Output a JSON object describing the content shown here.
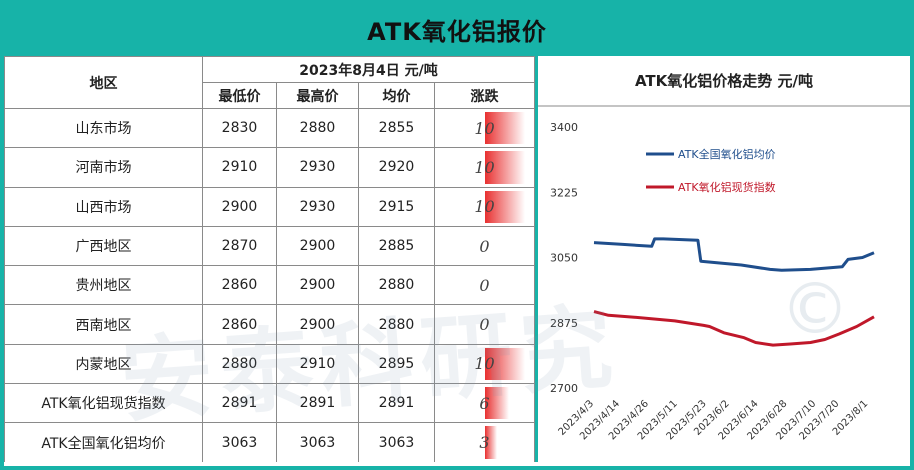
{
  "title": "ATK氧化铝报价",
  "table": {
    "region_header": "地区",
    "date_header": "2023年8月4日  元/吨",
    "col_headers": [
      "最低价",
      "最高价",
      "均价",
      "涨跌"
    ],
    "rows": [
      {
        "region": "山东市场",
        "low": "2830",
        "high": "2880",
        "avg": "2855",
        "change": "10",
        "change_value": 10
      },
      {
        "region": "河南市场",
        "low": "2910",
        "high": "2930",
        "avg": "2920",
        "change": "10",
        "change_value": 10
      },
      {
        "region": "山西市场",
        "low": "2900",
        "high": "2930",
        "avg": "2915",
        "change": "10",
        "change_value": 10
      },
      {
        "region": "广西地区",
        "low": "2870",
        "high": "2900",
        "avg": "2885",
        "change": "0",
        "change_value": 0
      },
      {
        "region": "贵州地区",
        "low": "2860",
        "high": "2900",
        "avg": "2880",
        "change": "0",
        "change_value": 0
      },
      {
        "region": "西南地区",
        "low": "2860",
        "high": "2900",
        "avg": "2880",
        "change": "0",
        "change_value": 0
      },
      {
        "region": "内蒙地区",
        "low": "2880",
        "high": "2910",
        "avg": "2895",
        "change": "10",
        "change_value": 10
      },
      {
        "region": "ATK氧化铝现货指数",
        "low": "2891",
        "high": "2891",
        "avg": "2891",
        "change": "6",
        "change_value": 6
      },
      {
        "region": "ATK全国氧化铝均价",
        "low": "3063",
        "high": "3063",
        "avg": "3063",
        "change": "3",
        "change_value": 3
      }
    ]
  },
  "watermark": "安泰科研究",
  "watermark_symbol": "©",
  "chart_data": {
    "type": "line",
    "title": "ATK氧化铝价格走势  元/吨",
    "ylim": [
      2700,
      3400
    ],
    "yticks": [
      2700,
      2875,
      3050,
      3225,
      3400
    ],
    "x_tick_labels": [
      "2023/4/3",
      "2023/4/14",
      "2023/4/26",
      "2023/5/11",
      "2023/5/23",
      "2023/6/2",
      "2023/6/14",
      "2023/6/28",
      "2023/7/10",
      "2023/7/20",
      "2023/8/1"
    ],
    "x_tick_index": [
      0,
      9,
      19,
      29,
      39,
      47,
      57,
      67,
      77,
      85,
      95
    ],
    "n_points": 98,
    "legend_position": "top-left",
    "grid": false,
    "colors": {
      "national": "#1f4e8c",
      "index": "#c0182a"
    },
    "series": [
      {
        "name": "ATK全国氧化铝均价",
        "key": "national",
        "points": [
          [
            0,
            3090
          ],
          [
            10,
            3085
          ],
          [
            20,
            3080
          ],
          [
            21,
            3100
          ],
          [
            24,
            3100
          ],
          [
            36,
            3096
          ],
          [
            37,
            3040
          ],
          [
            51,
            3030
          ],
          [
            61,
            3018
          ],
          [
            65,
            3016
          ],
          [
            75,
            3018
          ],
          [
            86,
            3025
          ],
          [
            88,
            3045
          ],
          [
            93,
            3050
          ],
          [
            97,
            3063
          ]
        ]
      },
      {
        "name": "ATK氧化铝现货指数",
        "key": "index",
        "points": [
          [
            0,
            2905
          ],
          [
            5,
            2895
          ],
          [
            14,
            2890
          ],
          [
            28,
            2880
          ],
          [
            38,
            2868
          ],
          [
            40,
            2865
          ],
          [
            45,
            2848
          ],
          [
            52,
            2835
          ],
          [
            56,
            2822
          ],
          [
            62,
            2815
          ],
          [
            68,
            2818
          ],
          [
            75,
            2822
          ],
          [
            80,
            2830
          ],
          [
            85,
            2845
          ],
          [
            91,
            2865
          ],
          [
            97,
            2891
          ]
        ]
      }
    ]
  }
}
